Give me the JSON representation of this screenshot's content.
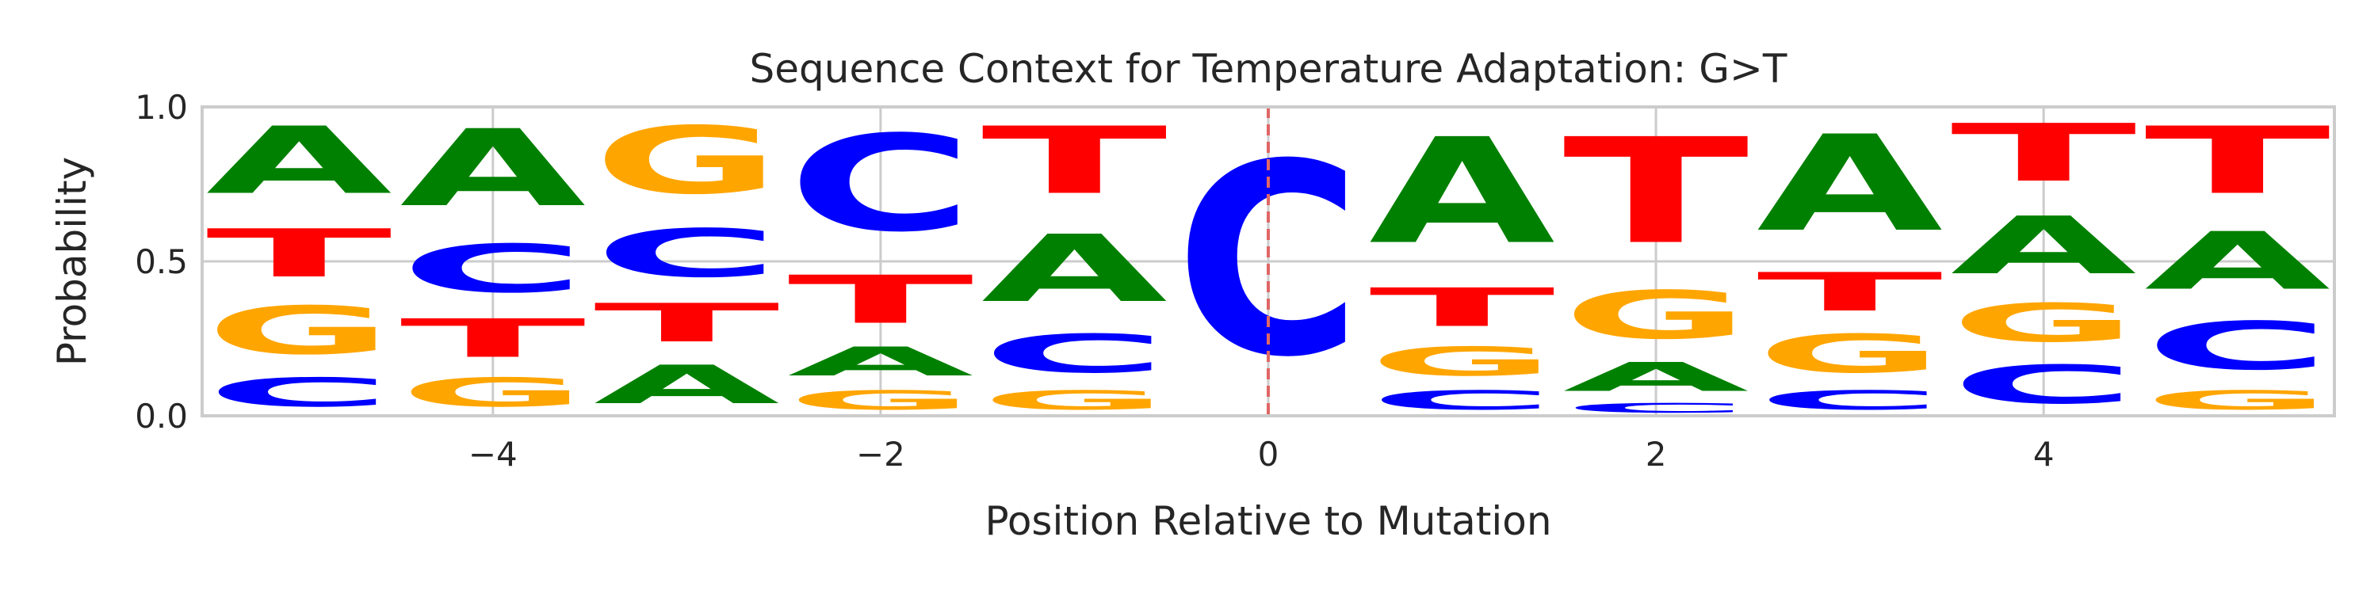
{
  "chart_data": {
    "type": "sequence-logo",
    "title": "Sequence Context for Temperature Adaptation: G>T",
    "xlabel": "Position Relative to Mutation",
    "ylabel": "Probability",
    "xlim": [
      -5.5,
      5.5
    ],
    "ylim": [
      0,
      1
    ],
    "xticks": [
      -4,
      -2,
      0,
      2,
      4
    ],
    "xtick_labels": [
      "−4",
      "−2",
      "0",
      "2",
      "4"
    ],
    "yticks": [
      0,
      0.5,
      1
    ],
    "ytick_labels": [
      "0.0",
      "0.5",
      "1.0"
    ],
    "grid": true,
    "mutation_position": 0,
    "colors": {
      "A": "#008000",
      "C": "#0000ff",
      "G": "#ffa500",
      "T": "#ff0000",
      "mutation_line": "#e06666"
    },
    "positions": [
      -5,
      -4,
      -3,
      -2,
      -1,
      0,
      1,
      2,
      3,
      4,
      5
    ],
    "stacks": [
      [
        {
          "letter": "C",
          "value": 0.15
        },
        {
          "letter": "G",
          "value": 0.25
        },
        {
          "letter": "T",
          "value": 0.25
        },
        {
          "letter": "A",
          "value": 0.35
        }
      ],
      [
        {
          "letter": "G",
          "value": 0.15
        },
        {
          "letter": "T",
          "value": 0.2
        },
        {
          "letter": "C",
          "value": 0.25
        },
        {
          "letter": "A",
          "value": 0.4
        }
      ],
      [
        {
          "letter": "A",
          "value": 0.2
        },
        {
          "letter": "T",
          "value": 0.2
        },
        {
          "letter": "C",
          "value": 0.25
        },
        {
          "letter": "G",
          "value": 0.35
        }
      ],
      [
        {
          "letter": "G",
          "value": 0.1
        },
        {
          "letter": "A",
          "value": 0.15
        },
        {
          "letter": "T",
          "value": 0.25
        },
        {
          "letter": "C",
          "value": 0.5
        }
      ],
      [
        {
          "letter": "G",
          "value": 0.1
        },
        {
          "letter": "C",
          "value": 0.2
        },
        {
          "letter": "A",
          "value": 0.35
        },
        {
          "letter": "T",
          "value": 0.35
        }
      ],
      [
        {
          "letter": "C",
          "value": 1.0
        }
      ],
      [
        {
          "letter": "C",
          "value": 0.1
        },
        {
          "letter": "G",
          "value": 0.15
        },
        {
          "letter": "T",
          "value": 0.2
        },
        {
          "letter": "A",
          "value": 0.55
        }
      ],
      [
        {
          "letter": "C",
          "value": 0.05
        },
        {
          "letter": "A",
          "value": 0.15
        },
        {
          "letter": "G",
          "value": 0.25
        },
        {
          "letter": "T",
          "value": 0.55
        }
      ],
      [
        {
          "letter": "C",
          "value": 0.1
        },
        {
          "letter": "G",
          "value": 0.2
        },
        {
          "letter": "T",
          "value": 0.2
        },
        {
          "letter": "A",
          "value": 0.5
        }
      ],
      [
        {
          "letter": "C",
          "value": 0.2
        },
        {
          "letter": "G",
          "value": 0.2
        },
        {
          "letter": "A",
          "value": 0.3
        },
        {
          "letter": "T",
          "value": 0.3
        }
      ],
      [
        {
          "letter": "G",
          "value": 0.1
        },
        {
          "letter": "C",
          "value": 0.25
        },
        {
          "letter": "A",
          "value": 0.3
        },
        {
          "letter": "T",
          "value": 0.35
        }
      ]
    ]
  }
}
